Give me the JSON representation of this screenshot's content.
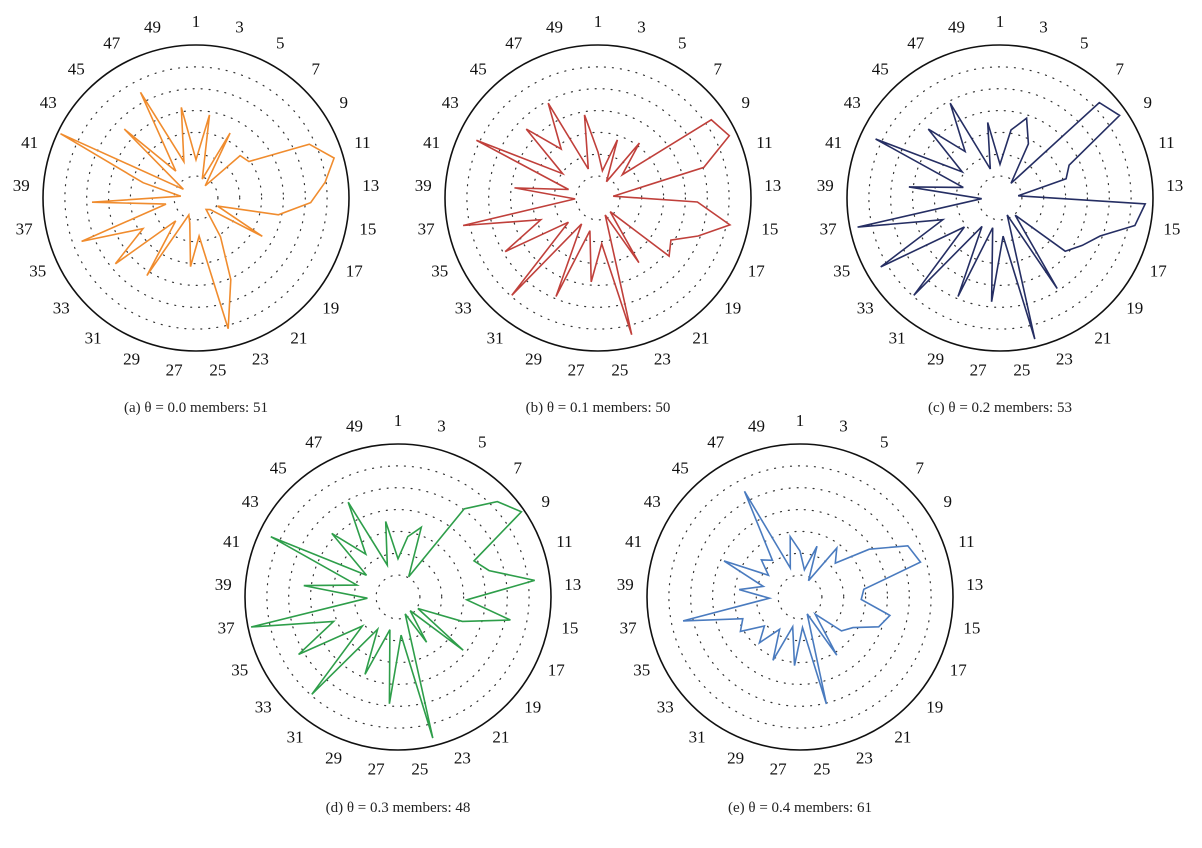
{
  "chart_data": [
    {
      "type": "radar",
      "caption": "(a)  θ = 0.0 members: 51",
      "series": [
        {
          "color": "#f08c2e",
          "values": [
            0.25,
            0.55,
            0.13,
            0.48,
            0.1,
            0.4,
            0.42,
            0.82,
            0.94,
            0.85,
            0.75,
            0.55,
            0.15,
            0.5,
            0.12,
            0.1,
            0.3,
            0.58,
            0.88,
            0.25,
            0.45,
            0.17,
            0.12,
            0.6,
            0.2,
            0.68,
            0.4,
            0.8,
            0.2,
            0.68,
            0.1,
            0.36,
            0.98,
            0.1,
            0.65,
            0.22,
            0.78,
            0.25,
            0.6
          ]
        }
      ]
    },
    {
      "type": "radar",
      "caption": "(b)  θ = 0.1 members: 50",
      "series": [
        {
          "color": "#c0403b",
          "values": [
            0.3,
            0.18,
            0.4,
            0.12,
            0.45,
            0.22,
            0.9,
            0.95,
            0.72,
            0.1,
            0.65,
            0.88,
            0.7,
            0.55,
            0.6,
            0.12,
            0.5,
            0.12,
            0.92,
            0.3,
            0.55,
            0.22,
            0.7,
            0.2,
            0.85,
            0.25,
            0.7,
            0.4,
            0.9,
            0.15,
            0.55,
            0.2,
            0.88,
            0.28,
            0.65,
            0.4,
            0.7,
            0.2,
            0.55
          ]
        }
      ]
    },
    {
      "type": "radar",
      "caption": "(c)  θ = 0.2 members: 53",
      "series": [
        {
          "color": "#252e63",
          "values": [
            0.22,
            0.45,
            0.55,
            0.4,
            0.12,
            0.9,
            0.95,
            0.5,
            0.45,
            0.12,
            0.95,
            0.9,
            0.7,
            0.62,
            0.55,
            0.15,
            0.7,
            0.12,
            0.95,
            0.25,
            0.68,
            0.2,
            0.7,
            0.22,
            0.85,
            0.3,
            0.9,
            0.4,
            0.95,
            0.12,
            0.6,
            0.25,
            0.9,
            0.3,
            0.65,
            0.38,
            0.7,
            0.2,
            0.5
          ]
        }
      ]
    },
    {
      "type": "radar",
      "caption": "(d)  θ = 0.3 members: 48",
      "series": [
        {
          "color": "#2e9e4a",
          "values": [
            0.25,
            0.4,
            0.48,
            0.15,
            0.72,
            0.9,
            0.98,
            0.55,
            0.62,
            0.9,
            0.45,
            0.75,
            0.45,
            0.15,
            0.55,
            0.12,
            0.35,
            0.12,
            0.95,
            0.25,
            0.7,
            0.22,
            0.55,
            0.25,
            0.85,
            0.3,
            0.75,
            0.45,
            0.98,
            0.2,
            0.62,
            0.28,
            0.92,
            0.25,
            0.6,
            0.35,
            0.7,
            0.22,
            0.5
          ]
        }
      ]
    },
    {
      "type": "radar",
      "caption": "(e)  θ = 0.4 members: 61",
      "series": [
        {
          "color": "#4a7bbf",
          "values": [
            0.3,
            0.18,
            0.35,
            0.12,
            0.4,
            0.32,
            0.55,
            0.78,
            0.82,
            0.42,
            0.4,
            0.6,
            0.55,
            0.4,
            0.35,
            0.15,
            0.45,
            0.12,
            0.72,
            0.2,
            0.45,
            0.2,
            0.45,
            0.25,
            0.4,
            0.3,
            0.45,
            0.4,
            0.78,
            0.2,
            0.4,
            0.25,
            0.55,
            0.25,
            0.35,
            0.3,
            0.78,
            0.2,
            0.4
          ]
        }
      ]
    }
  ],
  "axis": {
    "labels": [
      "1",
      "3",
      "5",
      "7",
      "9",
      "11",
      "13",
      "15",
      "17",
      "19",
      "21",
      "23",
      "25",
      "27",
      "29",
      "31",
      "33",
      "35",
      "37",
      "39",
      "41",
      "43",
      "45",
      "47",
      "49"
    ]
  }
}
